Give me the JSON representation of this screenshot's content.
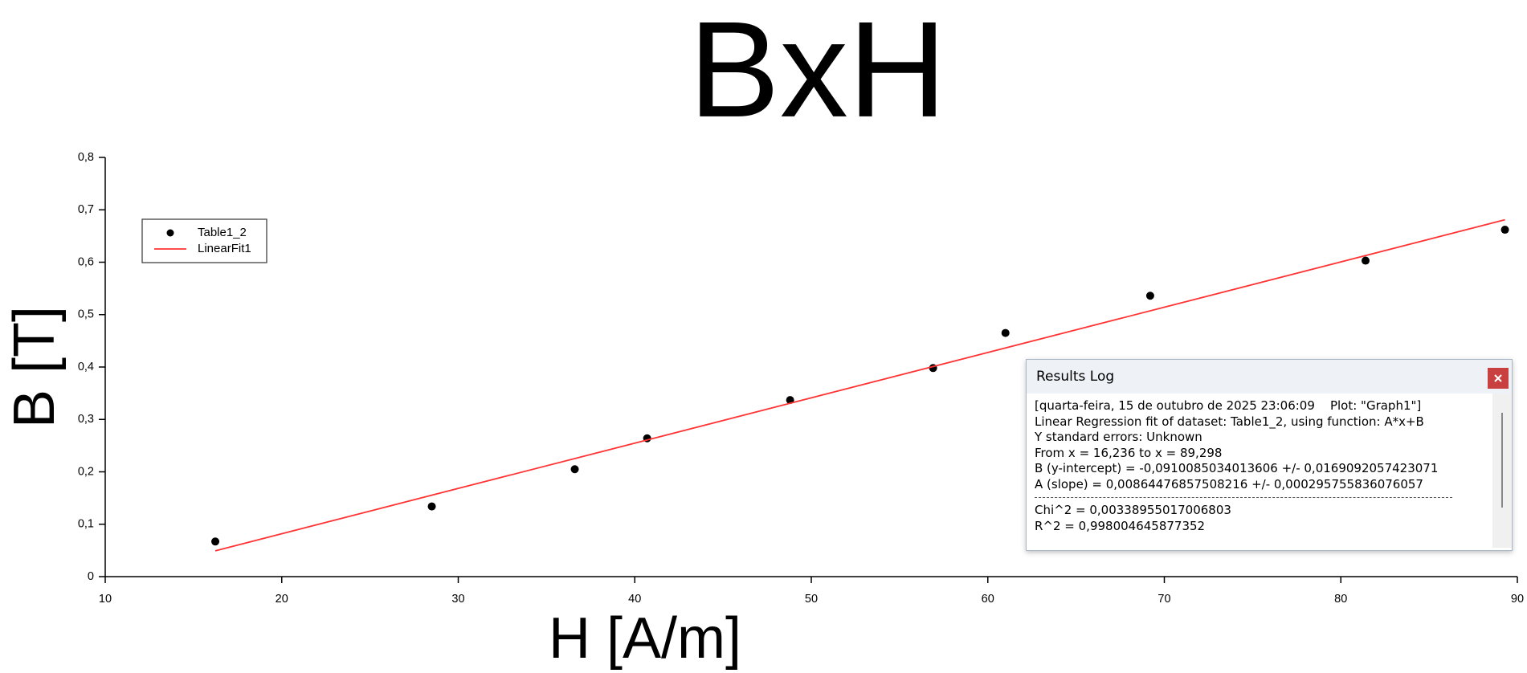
{
  "chart_data": {
    "type": "scatter",
    "title": "BxH",
    "x_label": "H [A/m]",
    "y_label": "B [T]",
    "series": [
      {
        "name": "Table1_2",
        "type": "scatter",
        "color": "#000000",
        "x": [
          16.236,
          28.5,
          36.6,
          40.7,
          48.8,
          56.9,
          61.0,
          69.2,
          81.4,
          89.298
        ],
        "values": [
          0.067,
          0.134,
          0.205,
          0.264,
          0.337,
          0.398,
          0.465,
          0.536,
          0.603,
          0.662
        ]
      },
      {
        "name": "LinearFit1",
        "type": "line",
        "color": "#ff3333",
        "x": [
          16.236,
          89.298
        ],
        "values": [
          0.0493,
          0.681
        ]
      }
    ],
    "xlim": [
      10,
      90
    ],
    "xticks": [
      10,
      20,
      30,
      40,
      50,
      60,
      70,
      80,
      90
    ],
    "ylim": [
      0,
      0.8
    ],
    "yticks": [
      0,
      {
        "value": 0.1,
        "label": "0,1"
      },
      {
        "value": 0.2,
        "label": "0,2"
      },
      {
        "value": 0.3,
        "label": "0,3"
      },
      {
        "value": 0.4,
        "label": "0,4"
      },
      {
        "value": 0.5,
        "label": "0,5"
      },
      {
        "value": 0.6,
        "label": "0,6"
      },
      {
        "value": 0.7,
        "label": "0,7"
      },
      {
        "value": 0.8,
        "label": "0,8"
      }
    ],
    "grid": false,
    "legend": "top-left"
  },
  "results_log": {
    "title": "Results Log",
    "lines": [
      "[quarta-feira, 15 de outubro de 2025 23:06:09    Plot: \"Graph1\"]",
      "Linear Regression fit of dataset: Table1_2, using function: A*x+B",
      "Y standard errors: Unknown",
      "From x = 16,236 to x = 89,298",
      "B (y-intercept) = -0,0910085034013606 +/- 0,0169092057423071",
      "A (slope) = 0,00864476857508216 +/- 0,000295755836076057"
    ],
    "stats": [
      "Chi^2 = 0,00338955017006803",
      "R^2 = 0,998004645877352"
    ]
  }
}
